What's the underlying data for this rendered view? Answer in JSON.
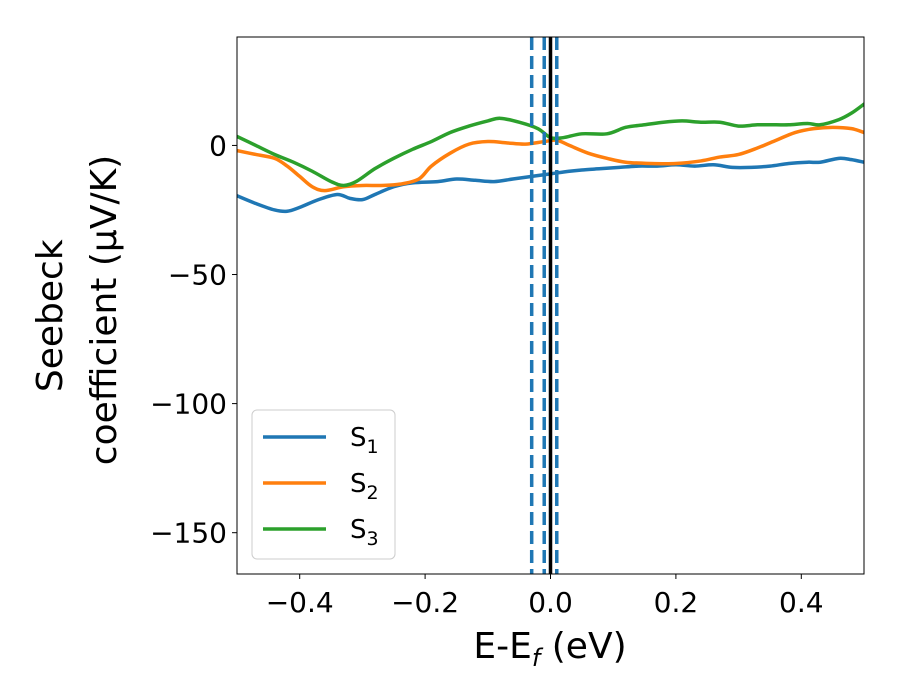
{
  "chart_data": {
    "type": "line",
    "xlabel": {
      "main": "E-E",
      "sub": "f",
      "unit": " (eV)"
    },
    "ylabel": {
      "line1": "Seebeck",
      "line2": "coefficient  (μV/K)"
    },
    "xlim": [
      -0.5,
      0.5
    ],
    "ylim": [
      -166,
      42
    ],
    "xticks": [
      -0.4,
      -0.2,
      0.0,
      0.2,
      0.4
    ],
    "xtick_labels": [
      "−0.4",
      "−0.2",
      "0.0",
      "0.2",
      "0.4"
    ],
    "yticks": [
      0,
      -50,
      -100,
      -150
    ],
    "ytick_labels": [
      "0",
      "−50",
      "−100",
      "−150"
    ],
    "grid": false,
    "legend_position": "lower-left",
    "series": [
      {
        "name": "S",
        "sub": "1",
        "color": "#1f77b4",
        "points": [
          [
            -0.5,
            -19.5
          ],
          [
            -0.47,
            -22.5
          ],
          [
            -0.44,
            -25
          ],
          [
            -0.42,
            -25.5
          ],
          [
            -0.4,
            -24
          ],
          [
            -0.37,
            -21
          ],
          [
            -0.34,
            -19
          ],
          [
            -0.32,
            -20.5
          ],
          [
            -0.3,
            -21
          ],
          [
            -0.28,
            -19
          ],
          [
            -0.25,
            -16
          ],
          [
            -0.22,
            -14.5
          ],
          [
            -0.18,
            -14
          ],
          [
            -0.15,
            -13
          ],
          [
            -0.12,
            -13.5
          ],
          [
            -0.09,
            -14
          ],
          [
            -0.06,
            -13
          ],
          [
            -0.03,
            -12
          ],
          [
            0.0,
            -11
          ],
          [
            0.03,
            -10
          ],
          [
            0.05,
            -9.5
          ],
          [
            0.08,
            -9
          ],
          [
            0.11,
            -8.5
          ],
          [
            0.14,
            -8
          ],
          [
            0.17,
            -8
          ],
          [
            0.2,
            -7.5
          ],
          [
            0.23,
            -8
          ],
          [
            0.26,
            -7.5
          ],
          [
            0.29,
            -8.5
          ],
          [
            0.32,
            -8.5
          ],
          [
            0.35,
            -8
          ],
          [
            0.38,
            -7
          ],
          [
            0.41,
            -6.5
          ],
          [
            0.43,
            -6.5
          ],
          [
            0.46,
            -5
          ],
          [
            0.48,
            -5.5
          ],
          [
            0.5,
            -6.5
          ]
        ]
      },
      {
        "name": "S",
        "sub": "2",
        "color": "#ff7f0e",
        "points": [
          [
            -0.5,
            -2
          ],
          [
            -0.47,
            -3.5
          ],
          [
            -0.44,
            -5
          ],
          [
            -0.42,
            -8
          ],
          [
            -0.4,
            -12
          ],
          [
            -0.38,
            -16
          ],
          [
            -0.36,
            -17.5
          ],
          [
            -0.33,
            -16
          ],
          [
            -0.3,
            -15.5
          ],
          [
            -0.27,
            -15.5
          ],
          [
            -0.24,
            -15
          ],
          [
            -0.21,
            -13
          ],
          [
            -0.19,
            -8
          ],
          [
            -0.16,
            -3
          ],
          [
            -0.13,
            0.5
          ],
          [
            -0.1,
            1.5
          ],
          [
            -0.07,
            1
          ],
          [
            -0.04,
            0.5
          ],
          [
            -0.01,
            1.5
          ],
          [
            0.01,
            2
          ],
          [
            0.03,
            0
          ],
          [
            0.06,
            -3
          ],
          [
            0.09,
            -5
          ],
          [
            0.12,
            -6.5
          ],
          [
            0.16,
            -7
          ],
          [
            0.2,
            -7
          ],
          [
            0.24,
            -6
          ],
          [
            0.27,
            -4.5
          ],
          [
            0.3,
            -3.5
          ],
          [
            0.33,
            -1
          ],
          [
            0.36,
            2
          ],
          [
            0.39,
            5
          ],
          [
            0.42,
            6.5
          ],
          [
            0.45,
            7
          ],
          [
            0.48,
            6.5
          ],
          [
            0.5,
            5
          ]
        ]
      },
      {
        "name": "S",
        "sub": "3",
        "color": "#2ca02c",
        "points": [
          [
            -0.5,
            3.5
          ],
          [
            -0.47,
            0
          ],
          [
            -0.44,
            -3.5
          ],
          [
            -0.41,
            -6.5
          ],
          [
            -0.38,
            -10
          ],
          [
            -0.35,
            -14
          ],
          [
            -0.33,
            -15.5
          ],
          [
            -0.31,
            -14
          ],
          [
            -0.28,
            -9
          ],
          [
            -0.25,
            -5
          ],
          [
            -0.22,
            -1.5
          ],
          [
            -0.19,
            1.5
          ],
          [
            -0.16,
            5
          ],
          [
            -0.13,
            7.5
          ],
          [
            -0.1,
            9.5
          ],
          [
            -0.08,
            10.5
          ],
          [
            -0.05,
            9
          ],
          [
            -0.02,
            6.5
          ],
          [
            0.0,
            3
          ],
          [
            0.02,
            3
          ],
          [
            0.05,
            4.5
          ],
          [
            0.09,
            4.5
          ],
          [
            0.12,
            7
          ],
          [
            0.15,
            8
          ],
          [
            0.18,
            9
          ],
          [
            0.21,
            9.5
          ],
          [
            0.24,
            9
          ],
          [
            0.27,
            9
          ],
          [
            0.3,
            7.5
          ],
          [
            0.33,
            8
          ],
          [
            0.36,
            8
          ],
          [
            0.38,
            8
          ],
          [
            0.41,
            8.5
          ],
          [
            0.43,
            8
          ],
          [
            0.46,
            10
          ],
          [
            0.48,
            12.5
          ],
          [
            0.5,
            16
          ]
        ]
      }
    ],
    "vlines": [
      {
        "x": -0.03,
        "style": "dashed",
        "color": "#1f77b4"
      },
      {
        "x": -0.01,
        "style": "dashed",
        "color": "#1f77b4"
      },
      {
        "x": 0.01,
        "style": "dashed",
        "color": "#1f77b4"
      },
      {
        "x": 0.0,
        "style": "solid",
        "color": "#000000"
      }
    ]
  }
}
